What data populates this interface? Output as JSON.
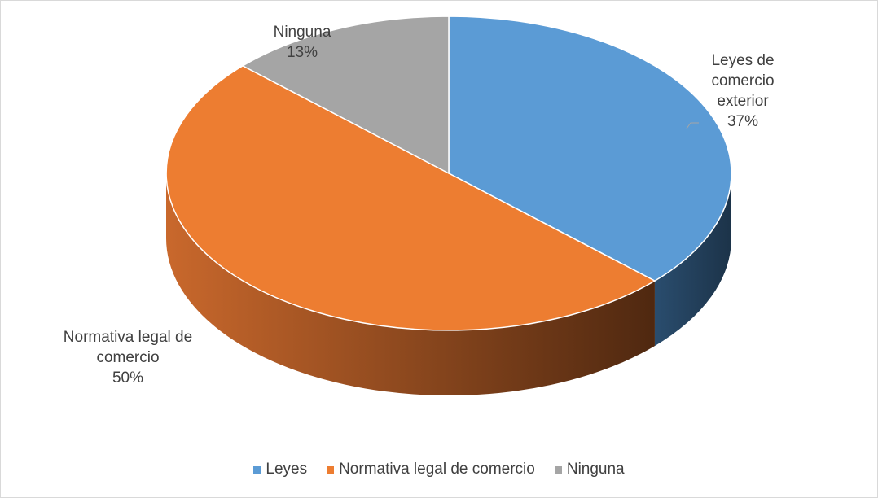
{
  "chart_data": {
    "type": "pie3d",
    "categories": [
      "Leyes",
      "Normativa legal de comercio",
      "Ninguna"
    ],
    "label_names": [
      "Leyes de comercio exterior",
      "Normativa legal de comercio",
      "Ninguna"
    ],
    "values": [
      37,
      50,
      13
    ],
    "value_labels": [
      "37%",
      "50%",
      "13%"
    ],
    "colors": [
      "#5b9bd5",
      "#ed7d31",
      "#a5a5a5"
    ],
    "legend": "bottom"
  }
}
